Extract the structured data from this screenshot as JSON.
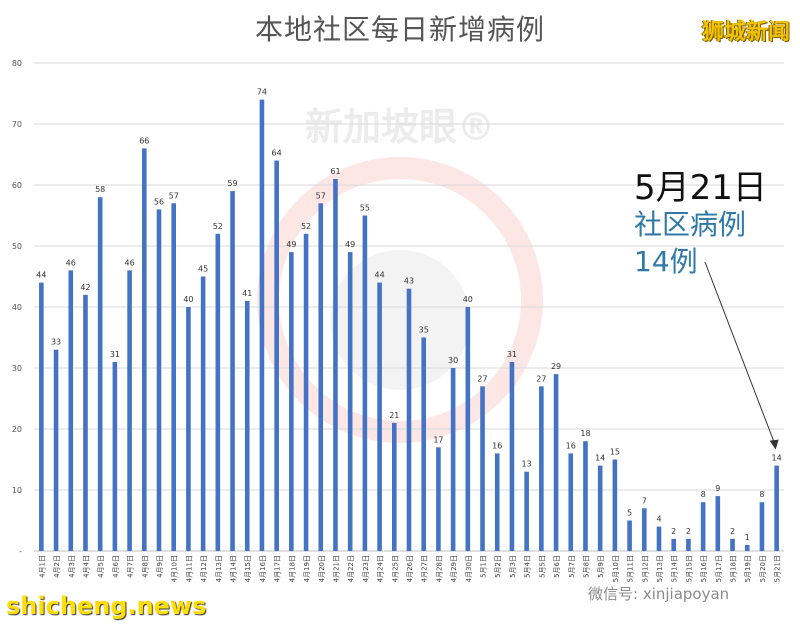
{
  "header": {
    "title": "本地社区每日新增病例",
    "brand": "狮城新闻",
    "watermark": "新加坡眼®"
  },
  "annotation": {
    "date": "5月21日",
    "label": "社区病例",
    "count": "14例"
  },
  "footer": {
    "site": "shicheng.news",
    "wechat": "微信号: xinjiapoyan"
  },
  "colors": {
    "bar": "#4472c4",
    "grid": "#d9d9d9",
    "title": "#555555",
    "annotation_blue": "#2f79a8",
    "brand": "#f2c400",
    "site": "#ffde00",
    "watermark": "#e8392b"
  },
  "chart_data": {
    "type": "bar",
    "title": "本地社区每日新增病例",
    "xlabel": "",
    "ylabel": "",
    "ylim": [
      0,
      80
    ],
    "yticks": [
      0,
      10,
      20,
      30,
      40,
      50,
      60,
      70,
      80
    ],
    "grid": true,
    "data_labels": true,
    "categories": [
      "4月1日",
      "4月2日",
      "4月3日",
      "4月4日",
      "4月5日",
      "4月6日",
      "4月7日",
      "4月8日",
      "4月9日",
      "4月10日",
      "4月11日",
      "4月12日",
      "4月13日",
      "4月14日",
      "4月15日",
      "4月16日",
      "4月17日",
      "4月18日",
      "4月19日",
      "4月20日",
      "4月21日",
      "4月22日",
      "4月23日",
      "4月24日",
      "4月25日",
      "4月26日",
      "4月27日",
      "4月28日",
      "4月29日",
      "4月30日",
      "5月1日",
      "5月2日",
      "5月3日",
      "5月4日",
      "5月5日",
      "5月6日",
      "5月7日",
      "5月8日",
      "5月9日",
      "5月10日",
      "5月11日",
      "5月12日",
      "5月13日",
      "5月14日",
      "5月15日",
      "5月16日",
      "5月17日",
      "5月18日",
      "5月19日",
      "5月20日",
      "5月21日"
    ],
    "values": [
      44,
      33,
      46,
      42,
      58,
      31,
      46,
      66,
      56,
      57,
      40,
      45,
      52,
      59,
      41,
      74,
      64,
      49,
      52,
      57,
      61,
      49,
      55,
      44,
      21,
      43,
      35,
      17,
      30,
      40,
      27,
      16,
      31,
      13,
      27,
      29,
      16,
      18,
      14,
      15,
      5,
      7,
      4,
      2,
      2,
      8,
      9,
      2,
      1,
      8,
      14
    ]
  }
}
